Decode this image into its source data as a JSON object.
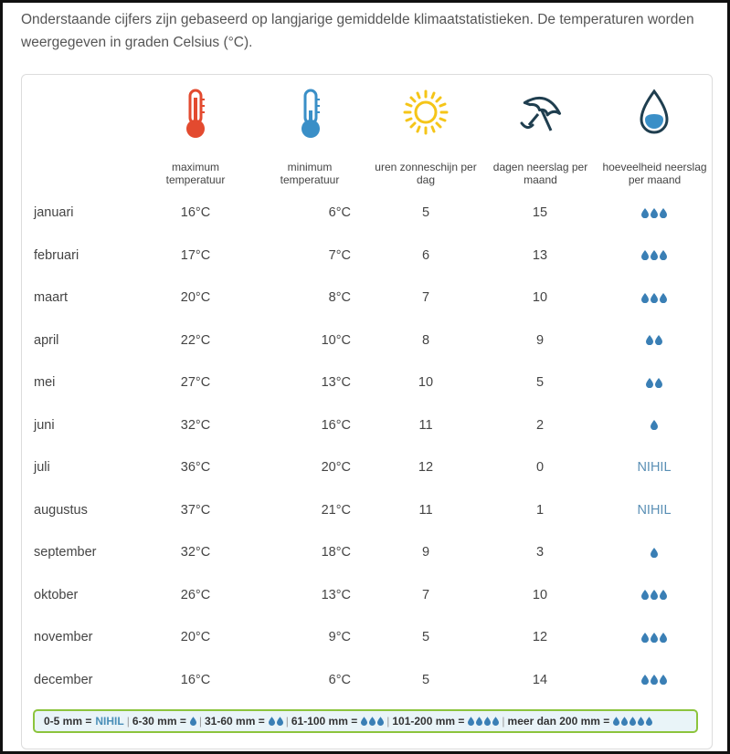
{
  "intro": "Onderstaande cijfers zijn gebaseerd op langjarige gemiddelde klimaatstatistieken. De temperaturen worden weergegeven in graden Celsius (°C).",
  "headers": [
    {
      "icon": "thermometer-hot-icon",
      "label": "maximum temperatuur"
    },
    {
      "icon": "thermometer-cold-icon",
      "label": "minimum temperatuur"
    },
    {
      "icon": "sun-icon",
      "label": "uren zonneschijn per dag"
    },
    {
      "icon": "umbrella-icon",
      "label": "dagen neerslag per maand"
    },
    {
      "icon": "water-drop-icon",
      "label": "hoeveelheid neerslag per maand"
    }
  ],
  "colors": {
    "hot": "#e34a2f",
    "cold": "#3a8fc7",
    "sun": "#f5c518",
    "dark": "#1f3e4f",
    "drop": "#3a7fb5",
    "legend_border": "#8cc43d"
  },
  "rows": [
    {
      "month": "januari",
      "max": "16°C",
      "min": "6°C",
      "sun": "5",
      "days": "15",
      "drops": 3,
      "text": ""
    },
    {
      "month": "februari",
      "max": "17°C",
      "min": "7°C",
      "sun": "6",
      "days": "13",
      "drops": 3,
      "text": ""
    },
    {
      "month": "maart",
      "max": "20°C",
      "min": "8°C",
      "sun": "7",
      "days": "10",
      "drops": 3,
      "text": ""
    },
    {
      "month": "april",
      "max": "22°C",
      "min": "10°C",
      "sun": "8",
      "days": "9",
      "drops": 2,
      "text": ""
    },
    {
      "month": "mei",
      "max": "27°C",
      "min": "13°C",
      "sun": "10",
      "days": "5",
      "drops": 2,
      "text": ""
    },
    {
      "month": "juni",
      "max": "32°C",
      "min": "16°C",
      "sun": "11",
      "days": "2",
      "drops": 1,
      "text": ""
    },
    {
      "month": "juli",
      "max": "36°C",
      "min": "20°C",
      "sun": "12",
      "days": "0",
      "drops": 0,
      "text": "NIHIL"
    },
    {
      "month": "augustus",
      "max": "37°C",
      "min": "21°C",
      "sun": "11",
      "days": "1",
      "drops": 0,
      "text": "NIHIL"
    },
    {
      "month": "september",
      "max": "32°C",
      "min": "18°C",
      "sun": "9",
      "days": "3",
      "drops": 1,
      "text": ""
    },
    {
      "month": "oktober",
      "max": "26°C",
      "min": "13°C",
      "sun": "7",
      "days": "10",
      "drops": 3,
      "text": ""
    },
    {
      "month": "november",
      "max": "20°C",
      "min": "9°C",
      "sun": "5",
      "days": "12",
      "drops": 3,
      "text": ""
    },
    {
      "month": "december",
      "max": "16°C",
      "min": "6°C",
      "sun": "5",
      "days": "14",
      "drops": 3,
      "text": ""
    }
  ],
  "legend": [
    {
      "range": "0-5 mm =",
      "value": "NIHIL",
      "drops": 0
    },
    {
      "range": "6-30 mm =",
      "value": "",
      "drops": 1
    },
    {
      "range": "31-60 mm =",
      "value": "",
      "drops": 2
    },
    {
      "range": "61-100 mm =",
      "value": "",
      "drops": 3
    },
    {
      "range": "101-200 mm =",
      "value": "",
      "drops": 4
    },
    {
      "range": "meer dan 200 mm =",
      "value": "",
      "drops": 5
    }
  ]
}
